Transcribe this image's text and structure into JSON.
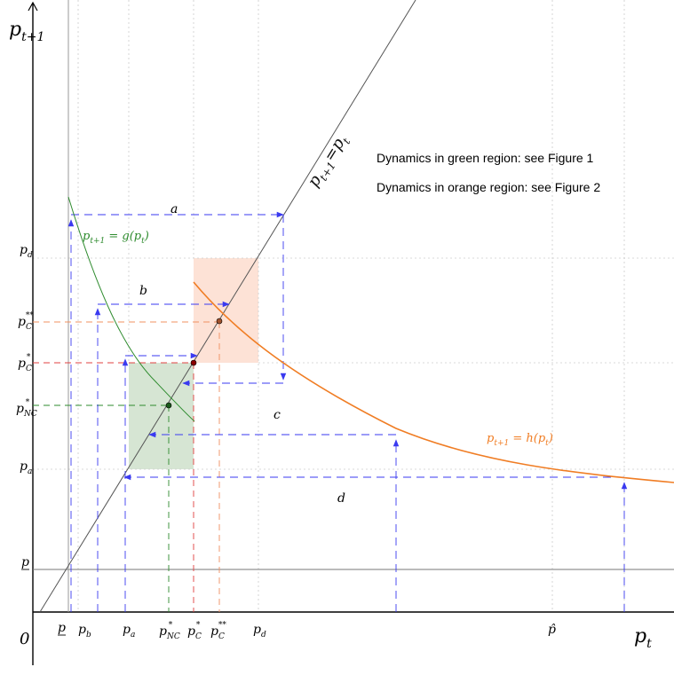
{
  "axes": {
    "y_label": "p",
    "y_label_sub": "t+1",
    "x_label": "p",
    "x_label_sub": "t",
    "origin": "0"
  },
  "y_ticks": [
    {
      "id": "pd",
      "base": "p",
      "sub": "d",
      "sup": ""
    },
    {
      "id": "pCss",
      "base": "p",
      "sub": "C",
      "sup": "**"
    },
    {
      "id": "pCs",
      "base": "p",
      "sub": "C",
      "sup": "*"
    },
    {
      "id": "pNCs",
      "base": "p",
      "sub": "NC",
      "sup": "*"
    },
    {
      "id": "pa",
      "base": "p",
      "sub": "a",
      "sup": ""
    },
    {
      "id": "pbar",
      "base": "p",
      "sub": "",
      "sup": ""
    }
  ],
  "x_ticks": [
    {
      "id": "pbar",
      "base": "p",
      "sub": "",
      "sup": ""
    },
    {
      "id": "pb",
      "base": "p",
      "sub": "b",
      "sup": ""
    },
    {
      "id": "pa",
      "base": "p",
      "sub": "a",
      "sup": ""
    },
    {
      "id": "pNCs",
      "base": "p",
      "sub": "NC",
      "sup": "*"
    },
    {
      "id": "pCs",
      "base": "p",
      "sub": "C",
      "sup": "*"
    },
    {
      "id": "pCss",
      "base": "p",
      "sub": "C",
      "sup": "**"
    },
    {
      "id": "pd",
      "base": "p",
      "sub": "d",
      "sup": ""
    },
    {
      "id": "phat",
      "base": "p̂",
      "sub": "",
      "sup": ""
    }
  ],
  "curves": {
    "diagonal": {
      "base": "p",
      "sub1": "t+1",
      "eq": "=",
      "sub2": "t",
      "color": "#555555"
    },
    "g": {
      "text": "p",
      "sub": "t+1",
      "rest": " = g(p",
      "sub2": "t",
      "end": ")",
      "color": "#2e8b2e"
    },
    "h": {
      "text": "p",
      "sub": "t+1",
      "rest": " = h(p",
      "sub2": "t",
      "end": ")",
      "color": "#f07d24"
    }
  },
  "path_labels": [
    "a",
    "b",
    "c",
    "d"
  ],
  "notes": [
    "Dynamics in green region: see Figure 1",
    "Dynamics in orange region: see Figure 2"
  ],
  "colors": {
    "arrow": "#3a3af0",
    "green_region": "#d6e5d3",
    "orange_region": "#fde2d6",
    "green_curve": "#2e8b2e",
    "orange_curve": "#f07d24",
    "red_dash": "#e04040"
  }
}
